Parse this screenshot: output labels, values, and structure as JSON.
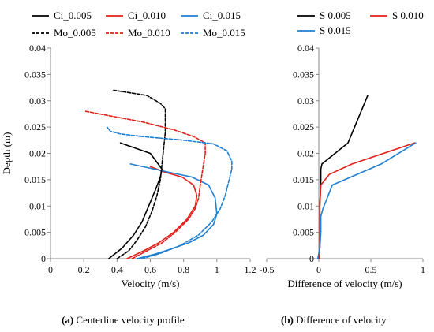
{
  "colors": {
    "black": "#000000",
    "red": "#e0201b",
    "blue": "#1f7fd0",
    "axis": "#888888",
    "grid": "#e6e6e6"
  },
  "captions": {
    "a_label": "(a)",
    "a_text": " Centerline velocity profile",
    "b_label": "(b)",
    "b_text": " Difference of velocity"
  },
  "chart_data": [
    {
      "type": "line",
      "xlabel": "Velocity (m/s)",
      "ylabel": "Depth (m)",
      "xlim": [
        0,
        1.2
      ],
      "ylim": [
        0,
        0.04
      ],
      "xticks": [
        0,
        0.2,
        0.4,
        0.6,
        0.8,
        1.0,
        1.2
      ],
      "xtick_labels": [
        "0",
        "0.2",
        "0.4",
        "0.6",
        "0.8",
        "1",
        "1.2"
      ],
      "yticks": [
        0,
        0.005,
        0.01,
        0.015,
        0.02,
        0.025,
        0.03,
        0.035,
        0.04
      ],
      "ytick_labels": [
        "0",
        "0.005",
        "0.01",
        "0.015",
        "0.02",
        "0.025",
        "0.03",
        "0.035",
        "0.04"
      ],
      "grid": false,
      "legend_position": "top",
      "series": [
        {
          "name": "Ci_0.005",
          "color": "#000000",
          "dash": false,
          "x": [
            0.35,
            0.43,
            0.5,
            0.55,
            0.59,
            0.63,
            0.66,
            0.67,
            0.6,
            0.42
          ],
          "y": [
            0.0,
            0.002,
            0.0045,
            0.007,
            0.01,
            0.013,
            0.0155,
            0.017,
            0.02,
            0.022
          ]
        },
        {
          "name": "Ci_0.010",
          "color": "#e0201b",
          "dash": false,
          "x": [
            0.46,
            0.56,
            0.65,
            0.74,
            0.82,
            0.87,
            0.88,
            0.86,
            0.79,
            0.68,
            0.6
          ],
          "y": [
            0.0,
            0.0015,
            0.003,
            0.005,
            0.0075,
            0.01,
            0.012,
            0.014,
            0.0155,
            0.0165,
            0.0175
          ]
        },
        {
          "name": "Ci_0.015",
          "color": "#1f7fd0",
          "dash": false,
          "x": [
            0.52,
            0.62,
            0.72,
            0.83,
            0.92,
            0.98,
            1.0,
            0.99,
            0.95,
            0.85,
            0.7,
            0.48
          ],
          "y": [
            0.0,
            0.0008,
            0.0018,
            0.003,
            0.0045,
            0.0065,
            0.0085,
            0.0115,
            0.014,
            0.0155,
            0.0165,
            0.018
          ]
        },
        {
          "name": "Mo_0.005",
          "color": "#000000",
          "dash": true,
          "x": [
            0.4,
            0.47,
            0.52,
            0.57,
            0.61,
            0.64,
            0.66,
            0.67,
            0.68,
            0.69,
            0.69,
            0.66,
            0.58,
            0.38
          ],
          "y": [
            0.0,
            0.0015,
            0.0035,
            0.006,
            0.009,
            0.012,
            0.015,
            0.018,
            0.021,
            0.024,
            0.0285,
            0.0295,
            0.031,
            0.032
          ]
        },
        {
          "name": "Mo_0.010",
          "color": "#e0201b",
          "dash": true,
          "x": [
            0.49,
            0.58,
            0.67,
            0.75,
            0.83,
            0.87,
            0.89,
            0.9,
            0.91,
            0.92,
            0.93,
            0.93,
            0.86,
            0.74,
            0.55,
            0.21
          ],
          "y": [
            0.0,
            0.0015,
            0.003,
            0.005,
            0.0075,
            0.0095,
            0.0115,
            0.014,
            0.016,
            0.018,
            0.02,
            0.022,
            0.0232,
            0.0245,
            0.026,
            0.028
          ]
        },
        {
          "name": "Mo_0.015",
          "color": "#1f7fd0",
          "dash": true,
          "x": [
            0.55,
            0.66,
            0.78,
            0.89,
            0.97,
            1.02,
            1.05,
            1.07,
            1.09,
            1.09,
            1.06,
            0.98,
            0.8,
            0.55,
            0.42,
            0.36,
            0.34
          ],
          "y": [
            0.0,
            0.001,
            0.0025,
            0.0045,
            0.007,
            0.0095,
            0.012,
            0.0145,
            0.017,
            0.0185,
            0.0205,
            0.0218,
            0.0225,
            0.0232,
            0.0237,
            0.0242,
            0.025
          ]
        }
      ]
    },
    {
      "type": "line",
      "xlabel": "Difference of velocity (m/s)",
      "ylabel": "",
      "xlim": [
        -0.5,
        1
      ],
      "ylim": [
        0,
        0.04
      ],
      "xticks": [
        -0.5,
        0,
        0.5,
        1
      ],
      "xtick_labels": [
        "-0.5",
        "0",
        "0.5",
        "1"
      ],
      "yticks": [
        0,
        0.005,
        0.01,
        0.015,
        0.02,
        0.025,
        0.03,
        0.035,
        0.04
      ],
      "ytick_labels": [
        "0",
        "0.005",
        "0.01",
        "0.015",
        "0.02",
        "0.025",
        "0.03",
        "0.035",
        "0.04"
      ],
      "grid": false,
      "legend_position": "top",
      "series": [
        {
          "name": "S 0.005",
          "color": "#000000",
          "dash": false,
          "x": [
            0.0,
            0.01,
            0.01,
            0.01,
            0.02,
            0.02,
            0.03,
            0.28,
            0.47
          ],
          "y": [
            0.0,
            0.002,
            0.005,
            0.01,
            0.015,
            0.017,
            0.018,
            0.022,
            0.031
          ]
        },
        {
          "name": "S 0.010",
          "color": "#e0201b",
          "dash": false,
          "x": [
            0.0,
            0.01,
            0.01,
            0.01,
            0.02,
            0.1,
            0.32,
            0.92
          ],
          "y": [
            0.0,
            0.002,
            0.006,
            0.01,
            0.014,
            0.016,
            0.018,
            0.022
          ]
        },
        {
          "name": "S 0.015",
          "color": "#1f7fd0",
          "dash": false,
          "x": [
            -0.01,
            0.01,
            0.02,
            0.02,
            0.04,
            0.13,
            0.6,
            0.93
          ],
          "y": [
            0.0,
            0.002,
            0.005,
            0.008,
            0.0095,
            0.014,
            0.018,
            0.022
          ]
        }
      ]
    }
  ]
}
